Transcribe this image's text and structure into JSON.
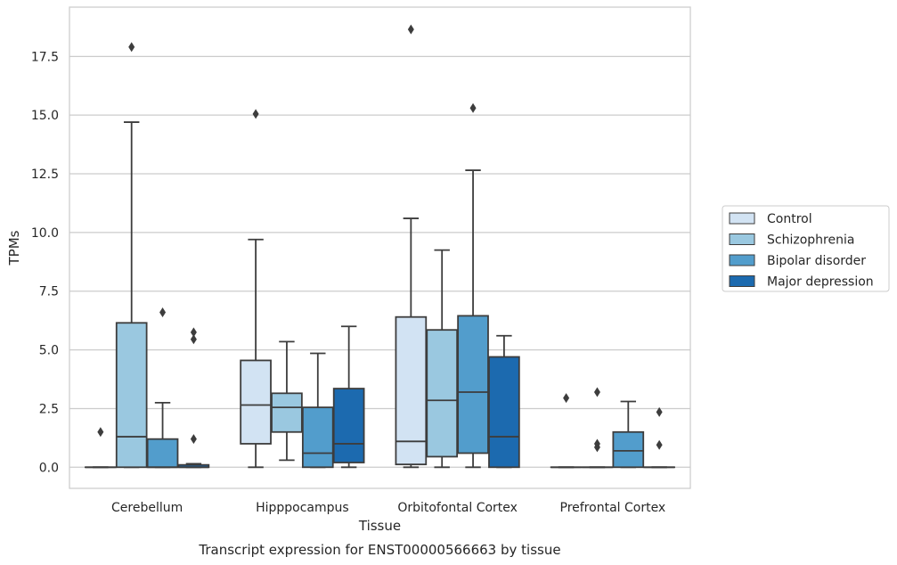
{
  "caption": "Transcript expression for ENST00000566663 by tissue",
  "chart_data": {
    "type": "boxplot",
    "xlabel": "Tissue",
    "ylabel": "TPMs",
    "ylim": [
      -0.9,
      19.6
    ],
    "yticks": [
      "0.0",
      "2.5",
      "5.0",
      "7.5",
      "10.0",
      "12.5",
      "15.0",
      "17.5"
    ],
    "grid": "horizontal",
    "legend_position": "right",
    "categories": [
      "Cerebellum",
      "Hipppocampus",
      "Orbitofontal Cortex",
      "Prefrontal Cortex"
    ],
    "series": [
      {
        "name": "Control",
        "color": "#d2e3f3",
        "boxes": [
          {
            "min": 0,
            "q1": 0,
            "median": 0,
            "q3": 0,
            "max": 0,
            "outliers": [
              1.5
            ]
          },
          {
            "min": 0,
            "q1": 1.0,
            "median": 2.65,
            "q3": 4.55,
            "max": 9.7,
            "outliers": [
              15.05
            ]
          },
          {
            "min": 0,
            "q1": 0.12,
            "median": 1.1,
            "q3": 6.4,
            "max": 10.6,
            "outliers": [
              18.65
            ]
          },
          {
            "min": 0,
            "q1": 0,
            "median": 0,
            "q3": 0,
            "max": 0,
            "outliers": [
              2.95
            ]
          }
        ]
      },
      {
        "name": "Schizophrenia",
        "color": "#9ac8e0",
        "boxes": [
          {
            "min": 0,
            "q1": 0,
            "median": 1.3,
            "q3": 6.15,
            "max": 14.7,
            "outliers": [
              17.9
            ]
          },
          {
            "min": 0.3,
            "q1": 1.5,
            "median": 2.55,
            "q3": 3.15,
            "max": 5.35,
            "outliers": []
          },
          {
            "min": 0,
            "q1": 0.45,
            "median": 2.85,
            "q3": 5.85,
            "max": 9.25,
            "outliers": []
          },
          {
            "min": 0,
            "q1": 0,
            "median": 0,
            "q3": 0,
            "max": 0,
            "outliers": [
              0.85,
              1.0,
              3.2
            ]
          }
        ]
      },
      {
        "name": "Bipolar disorder",
        "color": "#529dcc",
        "boxes": [
          {
            "min": 0,
            "q1": 0,
            "median": 0,
            "q3": 1.2,
            "max": 2.75,
            "outliers": [
              6.6
            ]
          },
          {
            "min": 0,
            "q1": 0,
            "median": 0.6,
            "q3": 2.55,
            "max": 4.85,
            "outliers": []
          },
          {
            "min": 0,
            "q1": 0.6,
            "median": 3.2,
            "q3": 6.45,
            "max": 12.65,
            "outliers": [
              15.3
            ]
          },
          {
            "min": 0,
            "q1": 0,
            "median": 0.7,
            "q3": 1.5,
            "max": 2.8,
            "outliers": []
          }
        ]
      },
      {
        "name": "Major depression",
        "color": "#1c6aaf",
        "boxes": [
          {
            "min": 0,
            "q1": 0,
            "median": 0,
            "q3": 0.1,
            "max": 0.15,
            "outliers": [
              1.2,
              5.45,
              5.75
            ]
          },
          {
            "min": 0,
            "q1": 0.2,
            "median": 1.0,
            "q3": 3.35,
            "max": 6.0,
            "outliers": []
          },
          {
            "min": 0,
            "q1": 0,
            "median": 1.3,
            "q3": 4.7,
            "max": 5.6,
            "outliers": []
          },
          {
            "min": 0,
            "q1": 0,
            "median": 0,
            "q3": 0,
            "max": 0,
            "outliers": [
              0.95,
              2.35
            ]
          }
        ]
      }
    ]
  }
}
